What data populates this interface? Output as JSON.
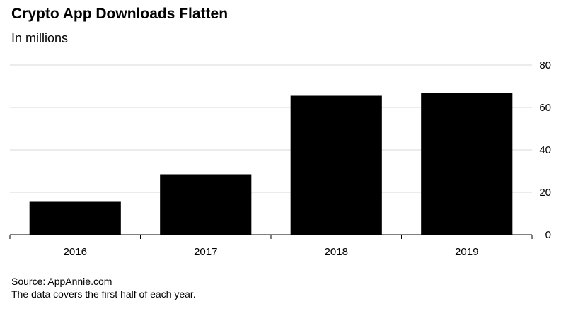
{
  "chart_data": {
    "type": "bar",
    "title": "Crypto App Downloads Flatten",
    "subtitle": "In millions",
    "categories": [
      "2016",
      "2017",
      "2018",
      "2019"
    ],
    "values": [
      15.5,
      28.5,
      65.5,
      67
    ],
    "ylim": [
      0,
      80
    ],
    "yticks": [
      0,
      20,
      40,
      60,
      80
    ],
    "xlabel": "",
    "ylabel": "",
    "grid": true,
    "bar_color": "#000000",
    "grid_color": "#d9d9d9",
    "axis_position": "right"
  },
  "footer": {
    "source": "Source: AppAnnie.com",
    "note": "The data covers the first half of each year."
  }
}
